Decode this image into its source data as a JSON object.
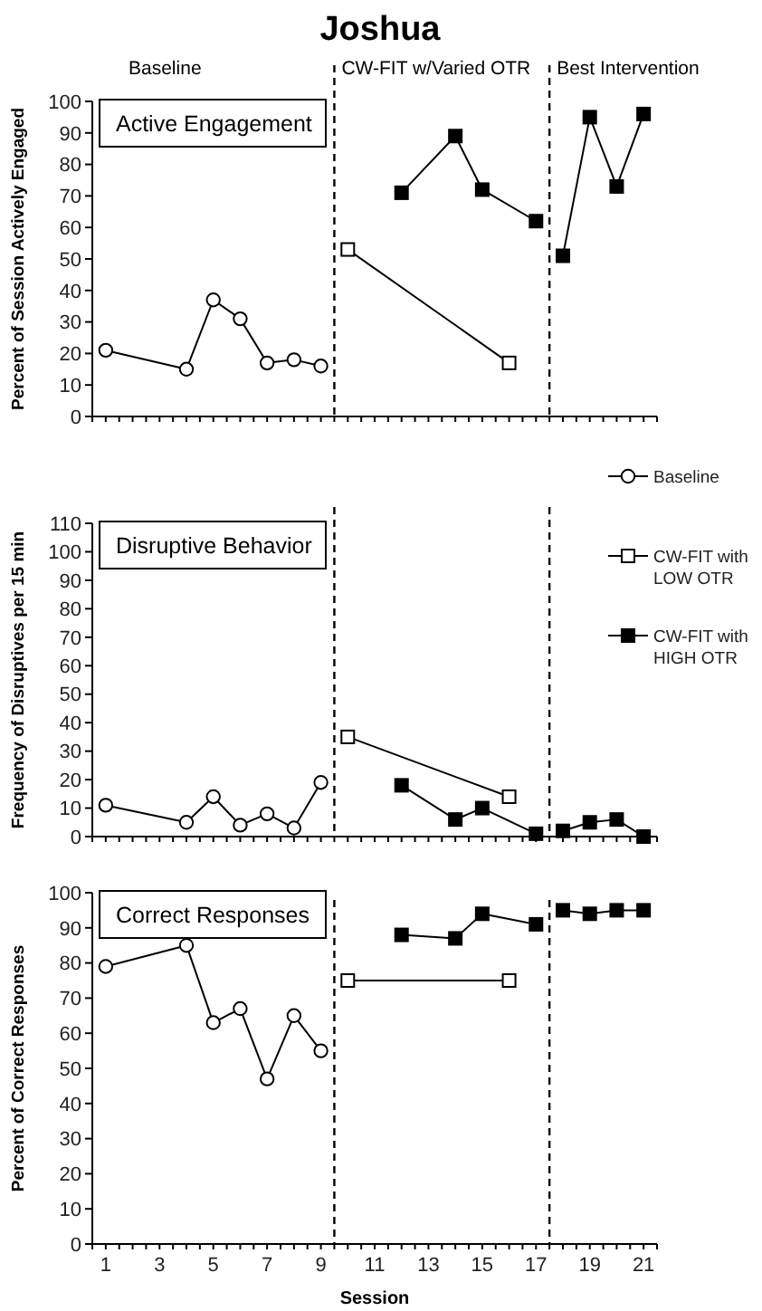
{
  "chart_data": [
    {
      "type": "line",
      "title": "Joshua",
      "ylabel": "Percent of Session Actively Engaged",
      "xlim": [
        0.5,
        21.5
      ],
      "ylim": [
        0,
        100
      ],
      "yticks": [
        0,
        10,
        20,
        30,
        40,
        50,
        60,
        70,
        80,
        90,
        100
      ],
      "tick_labels": "y",
      "xticks": [
        {
          "value": 0.5,
          "label": null
        },
        1,
        {
          "value": 1.5,
          "label": null
        },
        {
          "value": 2,
          "label": null
        },
        {
          "value": 2.5,
          "label": null
        },
        3,
        {
          "value": 3.5,
          "label": null
        },
        {
          "value": 4,
          "label": null
        },
        {
          "value": 4.5,
          "label": null
        },
        5,
        {
          "value": 5.5,
          "label": null
        },
        {
          "value": 6,
          "label": null
        },
        {
          "value": 6.5,
          "label": null
        },
        7,
        {
          "value": 7.5,
          "label": null
        },
        {
          "value": 8,
          "label": null
        },
        {
          "value": 8.5,
          "label": null
        },
        9,
        {
          "value": 9.5,
          "label": null
        },
        {
          "value": 10,
          "label": null
        },
        {
          "value": 10.5,
          "label": null
        },
        11,
        {
          "value": 11.5,
          "label": null
        },
        {
          "value": 12,
          "label": null
        },
        {
          "value": 12.5,
          "label": null
        },
        13,
        {
          "value": 13.5,
          "label": null
        },
        {
          "value": 14,
          "label": null
        },
        {
          "value": 14.5,
          "label": null
        },
        15,
        {
          "value": 15.5,
          "label": null
        },
        {
          "value": 16,
          "label": null
        },
        {
          "value": 16.5,
          "label": null
        },
        17,
        {
          "value": 17.5,
          "label": null
        },
        {
          "value": 18,
          "label": null
        },
        {
          "value": 18.5,
          "label": null
        },
        19,
        {
          "value": 19.5,
          "label": null
        },
        {
          "value": 20,
          "label": null
        },
        {
          "value": 20.5,
          "label": null
        },
        21,
        {
          "value": 21.5,
          "label": null
        }
      ],
      "grid": false,
      "legend": false,
      "ref_lines": [
        {
          "axis": "x",
          "value": 9.5,
          "line_style": "dashed",
          "color": "#000000"
        },
        {
          "axis": "x",
          "value": 17.5,
          "line_style": "dashed",
          "color": "#000000"
        }
      ],
      "annotations": [
        "Baseline",
        "CW-FIT w/Varied OTR",
        "Best Intervention",
        "Active Engagement"
      ],
      "series": [
        {
          "color": "#ffffff",
          "marker": "circle",
          "x": [
            1,
            4,
            5,
            6,
            7,
            8,
            9
          ],
          "values": [
            21,
            15,
            37,
            31,
            17,
            18,
            16
          ]
        },
        {
          "color": "#ffffff",
          "marker": "square",
          "x": [
            10,
            16
          ],
          "values": [
            53,
            17
          ]
        },
        {
          "color": "#000000",
          "marker": "square",
          "x": [
            12,
            14,
            15,
            17,
            17.5,
            18,
            19,
            20,
            21
          ],
          "values": [
            71,
            89,
            72,
            62,
            null,
            51,
            95,
            73,
            96
          ]
        }
      ]
    },
    {
      "type": "line",
      "ylabel": "Frequency of Disruptives per 15 min",
      "xlim": [
        0.5,
        21.5
      ],
      "ylim": [
        0,
        110
      ],
      "yticks": [
        0,
        10,
        20,
        30,
        40,
        50,
        60,
        70,
        80,
        90,
        100,
        110
      ],
      "tick_labels": "y",
      "xticks": [
        {
          "value": 0.5,
          "label": null
        },
        1,
        {
          "value": 1.5,
          "label": null
        },
        {
          "value": 2,
          "label": null
        },
        {
          "value": 2.5,
          "label": null
        },
        3,
        {
          "value": 3.5,
          "label": null
        },
        {
          "value": 4,
          "label": null
        },
        {
          "value": 4.5,
          "label": null
        },
        5,
        {
          "value": 5.5,
          "label": null
        },
        {
          "value": 6,
          "label": null
        },
        {
          "value": 6.5,
          "label": null
        },
        7,
        {
          "value": 7.5,
          "label": null
        },
        {
          "value": 8,
          "label": null
        },
        {
          "value": 8.5,
          "label": null
        },
        9,
        {
          "value": 9.5,
          "label": null
        },
        {
          "value": 10,
          "label": null
        },
        {
          "value": 10.5,
          "label": null
        },
        11,
        {
          "value": 11.5,
          "label": null
        },
        {
          "value": 12,
          "label": null
        },
        {
          "value": 12.5,
          "label": null
        },
        13,
        {
          "value": 13.5,
          "label": null
        },
        {
          "value": 14,
          "label": null
        },
        {
          "value": 14.5,
          "label": null
        },
        15,
        {
          "value": 15.5,
          "label": null
        },
        {
          "value": 16,
          "label": null
        },
        {
          "value": 16.5,
          "label": null
        },
        17,
        {
          "value": 17.5,
          "label": null
        },
        {
          "value": 18,
          "label": null
        },
        {
          "value": 18.5,
          "label": null
        },
        19,
        {
          "value": 19.5,
          "label": null
        },
        {
          "value": 20,
          "label": null
        },
        {
          "value": 20.5,
          "label": null
        },
        21,
        {
          "value": 21.5,
          "label": null
        }
      ],
      "grid": false,
      "legend": "right",
      "ref_lines": [
        {
          "axis": "x",
          "value": 9.5,
          "line_style": "dashed",
          "color": "#000000"
        },
        {
          "axis": "x",
          "value": 17.5,
          "line_style": "dashed",
          "color": "#000000"
        }
      ],
      "annotations": [
        "Disruptive Behavior"
      ],
      "series": [
        {
          "name": "Baseline",
          "color": "#ffffff",
          "marker": "circle",
          "x": [
            1,
            4,
            5,
            6,
            7,
            8,
            9
          ],
          "values": [
            11,
            5,
            14,
            4,
            8,
            3,
            19
          ]
        },
        {
          "name": "CW-FIT with LOW OTR",
          "color": "#ffffff",
          "marker": "square",
          "x": [
            10,
            16
          ],
          "values": [
            35,
            14
          ]
        },
        {
          "name": "CW-FIT with HIGH OTR",
          "color": "#000000",
          "marker": "square",
          "x": [
            12,
            14,
            15,
            17,
            17.5,
            18,
            19,
            20,
            21
          ],
          "values": [
            18,
            6,
            10,
            1,
            null,
            2,
            5,
            6,
            0
          ]
        }
      ]
    },
    {
      "type": "line",
      "ylabel": "Percent of Correct Responses",
      "xlabel": "Session",
      "xlim": [
        0.5,
        21.5
      ],
      "ylim": [
        0,
        100
      ],
      "yticks": [
        0,
        10,
        20,
        30,
        40,
        50,
        60,
        70,
        80,
        90,
        100
      ],
      "xticks": [
        {
          "value": 0.5,
          "label": null
        },
        1,
        {
          "value": 1.5,
          "label": null
        },
        {
          "value": 2,
          "label": null
        },
        {
          "value": 2.5,
          "label": null
        },
        3,
        {
          "value": 3.5,
          "label": null
        },
        {
          "value": 4,
          "label": null
        },
        {
          "value": 4.5,
          "label": null
        },
        5,
        {
          "value": 5.5,
          "label": null
        },
        {
          "value": 6,
          "label": null
        },
        {
          "value": 6.5,
          "label": null
        },
        7,
        {
          "value": 7.5,
          "label": null
        },
        {
          "value": 8,
          "label": null
        },
        {
          "value": 8.5,
          "label": null
        },
        9,
        {
          "value": 9.5,
          "label": null
        },
        {
          "value": 10,
          "label": null
        },
        {
          "value": 10.5,
          "label": null
        },
        11,
        {
          "value": 11.5,
          "label": null
        },
        {
          "value": 12,
          "label": null
        },
        {
          "value": 12.5,
          "label": null
        },
        13,
        {
          "value": 13.5,
          "label": null
        },
        {
          "value": 14,
          "label": null
        },
        {
          "value": 14.5,
          "label": null
        },
        15,
        {
          "value": 15.5,
          "label": null
        },
        {
          "value": 16,
          "label": null
        },
        {
          "value": 16.5,
          "label": null
        },
        17,
        {
          "value": 17.5,
          "label": null
        },
        {
          "value": 18,
          "label": null
        },
        {
          "value": 18.5,
          "label": null
        },
        19,
        {
          "value": 19.5,
          "label": null
        },
        {
          "value": 20,
          "label": null
        },
        {
          "value": 20.5,
          "label": null
        },
        21,
        {
          "value": 21.5,
          "label": null
        }
      ],
      "grid": false,
      "legend": false,
      "ref_lines": [
        {
          "axis": "x",
          "value": 9.5,
          "line_style": "dashed",
          "color": "#000000"
        },
        {
          "axis": "x",
          "value": 17.5,
          "line_style": "dashed",
          "color": "#000000"
        }
      ],
      "annotations": [
        "Correct Responses"
      ],
      "series": [
        {
          "color": "#ffffff",
          "marker": "circle",
          "x": [
            1,
            4,
            5,
            6,
            7,
            8,
            9
          ],
          "values": [
            79,
            85,
            63,
            67,
            47,
            65,
            55
          ]
        },
        {
          "color": "#ffffff",
          "marker": "square",
          "x": [
            10,
            16
          ],
          "values": [
            75,
            75
          ]
        },
        {
          "color": "#000000",
          "marker": "square",
          "x": [
            12,
            14,
            15,
            17,
            17.5,
            18,
            19,
            20,
            21
          ],
          "values": [
            88,
            87,
            94,
            91,
            null,
            95,
            94,
            95,
            95
          ]
        }
      ]
    }
  ]
}
